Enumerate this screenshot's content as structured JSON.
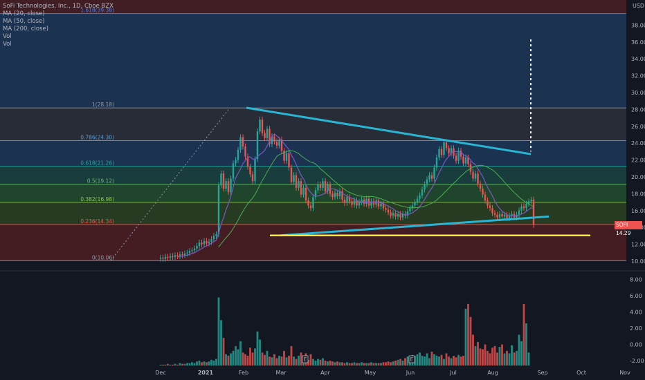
{
  "header": {
    "title": "SoFi Technologies, Inc., 1D, Cboe BZX",
    "indicators": [
      "MA (20, close)",
      "MA (50, close)",
      "MA (200, close)",
      "Vol",
      "Vol"
    ],
    "currency": "USD"
  },
  "price_tag": {
    "symbol": "SOFI",
    "value": "14.29"
  },
  "colors": {
    "up": "#26a69a",
    "down": "#ef5350",
    "background": "#131722",
    "trend_line": "#29b6d4",
    "support_line": "#ffeb3b",
    "ma20": "#7e57c2",
    "ma50": "#4caf50"
  },
  "chart_data": {
    "type": "candlestick",
    "x_axis_labels": [
      "Dec",
      "2021",
      "Feb",
      "Mar",
      "Apr",
      "May",
      "Jun",
      "Jul",
      "Aug",
      "Sep",
      "Oct",
      "Nov"
    ],
    "price_axis": {
      "ticks": [
        "38.00",
        "36.00",
        "34.00",
        "32.00",
        "30.00",
        "28.00",
        "26.00",
        "24.00",
        "22.00",
        "20.00",
        "18.00",
        "16.00",
        "14.00",
        "12.00",
        "10.00"
      ],
      "ylim": [
        10,
        40
      ]
    },
    "volume_axis": {
      "ticks": [
        "8.00",
        "6.00",
        "4.00",
        "2.00",
        "0.00",
        "-2.00"
      ],
      "ylim": [
        -2.6,
        9
      ]
    },
    "fib_levels": [
      {
        "label": "1.618(39.38)",
        "value": 39.38,
        "color": "#5b7fd4"
      },
      {
        "label": "1(28.18)",
        "value": 28.18,
        "color": "#9598a1"
      },
      {
        "label": "0.786(24.30)",
        "value": 24.3,
        "color": "#5b9bd5"
      },
      {
        "label": "0.618(21.26)",
        "value": 21.26,
        "color": "#26a69a"
      },
      {
        "label": "0.5(19.12)",
        "value": 19.12,
        "color": "#66bb6a"
      },
      {
        "label": "0.382(16.98)",
        "value": 16.98,
        "color": "#8bc34a"
      },
      {
        "label": "0.236(14.34)",
        "value": 14.34,
        "color": "#ef5350"
      },
      {
        "label": "0(10.06)",
        "value": 10.06,
        "color": "#9598a1"
      }
    ],
    "closes": [
      10.4,
      10.3,
      10.5,
      10.4,
      10.6,
      10.5,
      10.7,
      10.6,
      10.8,
      10.7,
      10.9,
      11.0,
      11.2,
      11.3,
      11.5,
      11.8,
      12.2,
      12.0,
      12.4,
      12.1,
      12.3,
      12.6,
      13.0,
      13.2,
      19.0,
      20.4,
      18.6,
      19.5,
      18.2,
      19.8,
      21.6,
      22.0,
      23.2,
      24.7,
      23.6,
      22.4,
      21.2,
      20.3,
      19.5,
      22.1,
      25.4,
      26.8,
      25.2,
      24.6,
      25.7,
      23.9,
      24.8,
      24.2,
      23.7,
      24.4,
      23.1,
      21.9,
      22.8,
      21.1,
      19.4,
      20.2,
      18.7,
      19.5,
      17.9,
      18.7,
      17.2,
      16.6,
      16.3,
      17.6,
      18.4,
      19.1,
      18.7,
      19.5,
      18.3,
      19.1,
      18.0,
      17.6,
      18.1,
      17.7,
      18.3,
      17.3,
      16.9,
      17.6,
      17.1,
      16.7,
      17.2,
      16.6,
      17.0,
      17.3,
      16.8,
      17.4,
      16.6,
      17.1,
      16.7,
      17.2,
      16.5,
      16.8,
      16.3,
      16.1,
      15.8,
      15.4,
      15.7,
      15.3,
      15.6,
      15.2,
      15.6,
      15.4,
      15.9,
      16.3,
      16.6,
      17.0,
      17.4,
      17.8,
      18.5,
      19.1,
      19.7,
      20.2,
      19.8,
      21.1,
      22.3,
      23.3,
      22.6,
      24.1,
      23.4,
      22.8,
      23.4,
      22.5,
      21.9,
      23.1,
      22.4,
      21.6,
      22.3,
      21.5,
      20.6,
      19.8,
      20.4,
      19.2,
      18.6,
      17.9,
      17.2,
      16.6,
      16.3,
      15.7,
      15.5,
      15.2,
      15.6,
      15.3,
      15.5,
      15.1,
      15.4,
      15.6,
      15.2,
      15.5,
      16.0,
      16.5,
      16.3,
      16.8,
      17.1,
      17.3,
      14.29
    ],
    "volume_values": [
      0.1,
      0.1,
      0.1,
      0.2,
      0.1,
      0.1,
      0.2,
      0.1,
      0.3,
      0.2,
      0.2,
      0.3,
      0.3,
      0.4,
      0.3,
      0.5,
      0.6,
      0.4,
      0.5,
      0.4,
      0.5,
      0.7,
      0.6,
      0.8,
      8.4,
      5.6,
      3.4,
      1.4,
      1.2,
      1.5,
      1.8,
      2.4,
      2.0,
      3.0,
      1.6,
      1.4,
      1.2,
      2.2,
      1.6,
      2.1,
      4.2,
      3.2,
      1.6,
      1.3,
      1.8,
      1.1,
      1.0,
      1.4,
      0.9,
      1.2,
      1.1,
      1.8,
      1.0,
      1.2,
      2.4,
      1.1,
      0.8,
      1.2,
      1.6,
      0.8,
      1.5,
      0.7,
      1.4,
      0.8,
      0.6,
      0.8,
      0.7,
      0.9,
      0.6,
      0.5,
      0.6,
      0.5,
      0.4,
      0.5,
      0.4,
      0.4,
      0.3,
      0.4,
      0.3,
      0.3,
      0.4,
      0.3,
      0.3,
      0.4,
      0.3,
      0.3,
      0.3,
      0.4,
      0.3,
      0.3,
      0.3,
      0.3,
      0.4,
      0.4,
      0.5,
      0.4,
      0.5,
      0.6,
      0.7,
      0.8,
      0.6,
      0.9,
      1.1,
      1.0,
      1.3,
      1.2,
      1.4,
      1.6,
      1.2,
      1.1,
      1.5,
      0.9,
      1.7,
      1.4,
      1.2,
      1.1,
      1.3,
      0.8,
      1.5,
      1.1,
      0.9,
      1.2,
      1.0,
      1.3,
      1.1,
      1.2,
      7.0,
      7.6,
      6.0,
      3.8,
      2.4,
      2.9,
      2.1,
      2.0,
      2.6,
      1.8,
      1.5,
      2.2,
      2.4,
      1.6,
      2.3,
      2.6,
      1.5,
      1.8,
      1.5,
      2.5,
      1.6,
      1.8,
      3.8,
      3.0,
      7.6,
      5.2,
      1.6
    ],
    "annotations": {
      "descending_trendline": "cyan line from Feb high toward Aug",
      "ascending_trendline": "cyan line from Mar low to Aug",
      "support_line": "yellow horizontal near 13.00",
      "projection": "white dotted vertical line"
    },
    "events": [
      {
        "label": "E"
      },
      {
        "label": "E"
      }
    ]
  }
}
